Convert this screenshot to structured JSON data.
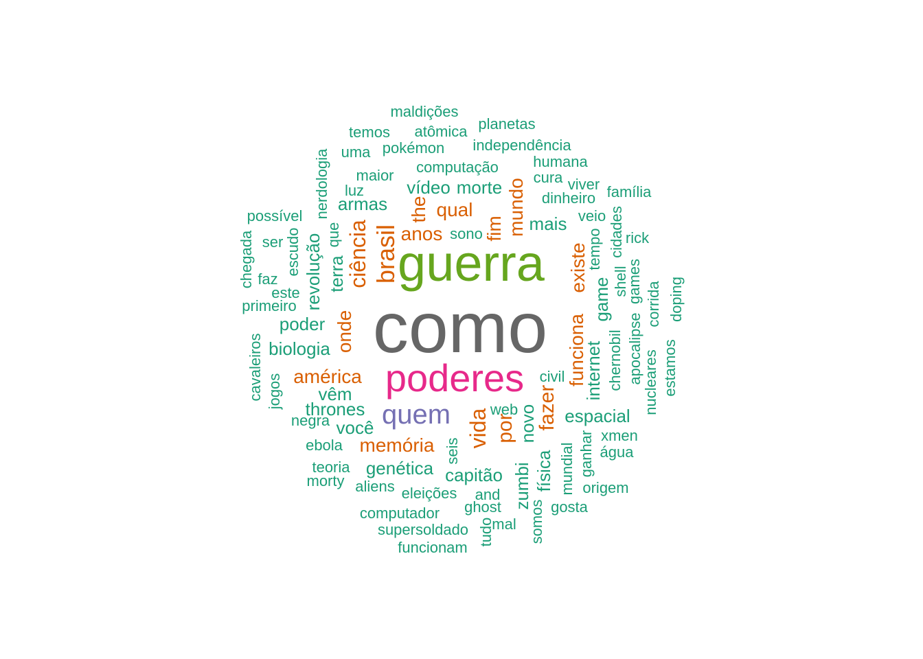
{
  "palette": {
    "level1": "#1b9e77",
    "level2": "#d95f02",
    "level3": "#7570b3",
    "level4": "#e7298a",
    "level5": "#66a61e",
    "level6": "#666666"
  },
  "words": [
    {
      "text": "como",
      "color": "level6"
    },
    {
      "text": "guerra",
      "color": "level5"
    },
    {
      "text": "poderes",
      "color": "level4"
    },
    {
      "text": "quem",
      "color": "level3"
    },
    {
      "text": "brasil",
      "color": "level2"
    },
    {
      "text": "ciência",
      "color": "level2"
    },
    {
      "text": "vida",
      "color": "level2"
    },
    {
      "text": "por",
      "color": "level2"
    },
    {
      "text": "fazer",
      "color": "level2"
    },
    {
      "text": "funciona",
      "color": "level2"
    },
    {
      "text": "existe",
      "color": "level2"
    },
    {
      "text": "mundo",
      "color": "level2"
    },
    {
      "text": "américa",
      "color": "level2"
    },
    {
      "text": "memória",
      "color": "level2"
    },
    {
      "text": "anos",
      "color": "level2"
    },
    {
      "text": "qual",
      "color": "level2"
    },
    {
      "text": "onde",
      "color": "level2"
    },
    {
      "text": "the",
      "color": "level2"
    },
    {
      "text": "fim",
      "color": "level2"
    },
    {
      "text": "maldições",
      "color": "level1"
    },
    {
      "text": "planetas",
      "color": "level1"
    },
    {
      "text": "temos",
      "color": "level1"
    },
    {
      "text": "atômica",
      "color": "level1"
    },
    {
      "text": "pokémon",
      "color": "level1"
    },
    {
      "text": "independência",
      "color": "level1"
    },
    {
      "text": "uma",
      "color": "level1"
    },
    {
      "text": "humana",
      "color": "level1"
    },
    {
      "text": "computação",
      "color": "level1"
    },
    {
      "text": "nerdologia",
      "color": "level1"
    },
    {
      "text": "maior",
      "color": "level1"
    },
    {
      "text": "cura",
      "color": "level1"
    },
    {
      "text": "viver",
      "color": "level1"
    },
    {
      "text": "vídeo",
      "color": "level1"
    },
    {
      "text": "morte",
      "color": "level1"
    },
    {
      "text": "família",
      "color": "level1"
    },
    {
      "text": "luz",
      "color": "level1"
    },
    {
      "text": "dinheiro",
      "color": "level1"
    },
    {
      "text": "armas",
      "color": "level1"
    },
    {
      "text": "possível",
      "color": "level1"
    },
    {
      "text": "veio",
      "color": "level1"
    },
    {
      "text": "mais",
      "color": "level1"
    },
    {
      "text": "cidades",
      "color": "level1"
    },
    {
      "text": "que",
      "color": "level1"
    },
    {
      "text": "sono",
      "color": "level1"
    },
    {
      "text": "rick",
      "color": "level1"
    },
    {
      "text": "tempo",
      "color": "level1"
    },
    {
      "text": "chegada",
      "color": "level1"
    },
    {
      "text": "ser",
      "color": "level1"
    },
    {
      "text": "escudo",
      "color": "level1"
    },
    {
      "text": "revolução",
      "color": "level1"
    },
    {
      "text": "terra",
      "color": "level1"
    },
    {
      "text": "shell",
      "color": "level1"
    },
    {
      "text": "games",
      "color": "level1"
    },
    {
      "text": "faz",
      "color": "level1"
    },
    {
      "text": "doping",
      "color": "level1"
    },
    {
      "text": "este",
      "color": "level1"
    },
    {
      "text": "corrida",
      "color": "level1"
    },
    {
      "text": "primeiro",
      "color": "level1"
    },
    {
      "text": "game",
      "color": "level1"
    },
    {
      "text": "poder",
      "color": "level1"
    },
    {
      "text": "apocalipse",
      "color": "level1"
    },
    {
      "text": "biologia",
      "color": "level1"
    },
    {
      "text": "chernobil",
      "color": "level1"
    },
    {
      "text": "cavaleiros",
      "color": "level1"
    },
    {
      "text": "internet",
      "color": "level1"
    },
    {
      "text": "estamos",
      "color": "level1"
    },
    {
      "text": "nucleares",
      "color": "level1"
    },
    {
      "text": "civil",
      "color": "level1"
    },
    {
      "text": "jogos",
      "color": "level1"
    },
    {
      "text": "vêm",
      "color": "level1"
    },
    {
      "text": "thrones",
      "color": "level1"
    },
    {
      "text": "web",
      "color": "level1"
    },
    {
      "text": "espacial",
      "color": "level1"
    },
    {
      "text": "negra",
      "color": "level1"
    },
    {
      "text": "você",
      "color": "level1"
    },
    {
      "text": "novo",
      "color": "level1"
    },
    {
      "text": "xmen",
      "color": "level1"
    },
    {
      "text": "ganhar",
      "color": "level1"
    },
    {
      "text": "ebola",
      "color": "level1"
    },
    {
      "text": "seis",
      "color": "level1"
    },
    {
      "text": "água",
      "color": "level1"
    },
    {
      "text": "mundial",
      "color": "level1"
    },
    {
      "text": "teoria",
      "color": "level1"
    },
    {
      "text": "genética",
      "color": "level1"
    },
    {
      "text": "capitão",
      "color": "level1"
    },
    {
      "text": "física",
      "color": "level1"
    },
    {
      "text": "morty",
      "color": "level1"
    },
    {
      "text": "origem",
      "color": "level1"
    },
    {
      "text": "aliens",
      "color": "level1"
    },
    {
      "text": "eleições",
      "color": "level1"
    },
    {
      "text": "and",
      "color": "level1"
    },
    {
      "text": "zumbi",
      "color": "level1"
    },
    {
      "text": "ghost",
      "color": "level1"
    },
    {
      "text": "gosta",
      "color": "level1"
    },
    {
      "text": "computador",
      "color": "level1"
    },
    {
      "text": "mal",
      "color": "level1"
    },
    {
      "text": "somos",
      "color": "level1"
    },
    {
      "text": "supersoldado",
      "color": "level1"
    },
    {
      "text": "tudo",
      "color": "level1"
    },
    {
      "text": "funcionam",
      "color": "level1"
    }
  ]
}
